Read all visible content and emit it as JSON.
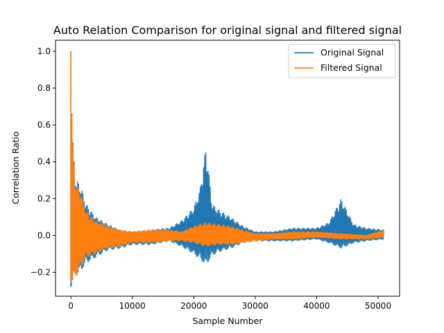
{
  "chart_data": {
    "type": "line",
    "title": "Auto Relation Comparison for original signal and filtered signal",
    "xlabel": "Sample Number",
    "ylabel": "Correlation Ratio",
    "xlim": [
      -2500,
      53500
    ],
    "ylim": [
      -0.33,
      1.06
    ],
    "xticks": [
      0,
      10000,
      20000,
      30000,
      40000,
      50000
    ],
    "xtick_labels": [
      "0",
      "10000",
      "20000",
      "30000",
      "40000",
      "50000"
    ],
    "yticks": [
      -0.2,
      0.0,
      0.2,
      0.4,
      0.6,
      0.8,
      1.0
    ],
    "ytick_labels": [
      "−0.2",
      "0.0",
      "0.2",
      "0.4",
      "0.6",
      "0.8",
      "1.0"
    ],
    "grid": false,
    "legend_position": "top-right",
    "series": [
      {
        "name": "Original Signal",
        "color": "#1f77b4",
        "envelope": [
          {
            "x": 0,
            "upper": 1.0,
            "lower": -0.28
          },
          {
            "x": 300,
            "upper": 0.53,
            "lower": -0.26
          },
          {
            "x": 800,
            "upper": 0.3,
            "lower": -0.22
          },
          {
            "x": 1500,
            "upper": 0.28,
            "lower": -0.2
          },
          {
            "x": 2500,
            "upper": 0.17,
            "lower": -0.15
          },
          {
            "x": 4000,
            "upper": 0.1,
            "lower": -0.12
          },
          {
            "x": 6000,
            "upper": 0.06,
            "lower": -0.08
          },
          {
            "x": 8000,
            "upper": 0.03,
            "lower": -0.07
          },
          {
            "x": 10000,
            "upper": 0.02,
            "lower": -0.05
          },
          {
            "x": 13000,
            "upper": 0.03,
            "lower": -0.05
          },
          {
            "x": 16000,
            "upper": 0.04,
            "lower": -0.03
          },
          {
            "x": 18000,
            "upper": 0.08,
            "lower": -0.06
          },
          {
            "x": 20000,
            "upper": 0.15,
            "lower": -0.1
          },
          {
            "x": 21000,
            "upper": 0.25,
            "lower": -0.13
          },
          {
            "x": 22000,
            "upper": 0.49,
            "lower": -0.16
          },
          {
            "x": 23000,
            "upper": 0.17,
            "lower": -0.11
          },
          {
            "x": 24000,
            "upper": 0.14,
            "lower": -0.09
          },
          {
            "x": 26000,
            "upper": 0.1,
            "lower": -0.07
          },
          {
            "x": 28000,
            "upper": 0.05,
            "lower": -0.04
          },
          {
            "x": 30000,
            "upper": 0.02,
            "lower": -0.03
          },
          {
            "x": 33000,
            "upper": 0.02,
            "lower": -0.03
          },
          {
            "x": 36000,
            "upper": 0.04,
            "lower": -0.03
          },
          {
            "x": 40000,
            "upper": 0.04,
            "lower": -0.02
          },
          {
            "x": 42000,
            "upper": 0.07,
            "lower": -0.04
          },
          {
            "x": 44000,
            "upper": 0.2,
            "lower": -0.07
          },
          {
            "x": 46000,
            "upper": 0.06,
            "lower": -0.04
          },
          {
            "x": 48000,
            "upper": 0.04,
            "lower": -0.03
          },
          {
            "x": 51000,
            "upper": 0.03,
            "lower": -0.02
          }
        ]
      },
      {
        "name": "Filtered Signal",
        "color": "#ff7f0e",
        "envelope": [
          {
            "x": 0,
            "upper": 1.0,
            "lower": -0.26
          },
          {
            "x": 300,
            "upper": 0.52,
            "lower": -0.25
          },
          {
            "x": 800,
            "upper": 0.28,
            "lower": -0.22
          },
          {
            "x": 1500,
            "upper": 0.25,
            "lower": -0.18
          },
          {
            "x": 2500,
            "upper": 0.13,
            "lower": -0.12
          },
          {
            "x": 4000,
            "upper": 0.08,
            "lower": -0.1
          },
          {
            "x": 6000,
            "upper": 0.05,
            "lower": -0.07
          },
          {
            "x": 8000,
            "upper": 0.03,
            "lower": -0.06
          },
          {
            "x": 10000,
            "upper": 0.02,
            "lower": -0.04
          },
          {
            "x": 13000,
            "upper": 0.03,
            "lower": -0.04
          },
          {
            "x": 16000,
            "upper": 0.03,
            "lower": -0.03
          },
          {
            "x": 18000,
            "upper": 0.02,
            "lower": -0.03
          },
          {
            "x": 20000,
            "upper": 0.05,
            "lower": -0.04
          },
          {
            "x": 22000,
            "upper": 0.07,
            "lower": -0.06
          },
          {
            "x": 24000,
            "upper": 0.06,
            "lower": -0.05
          },
          {
            "x": 26000,
            "upper": 0.05,
            "lower": -0.05
          },
          {
            "x": 28000,
            "upper": 0.03,
            "lower": -0.04
          },
          {
            "x": 30000,
            "upper": 0.01,
            "lower": -0.03
          },
          {
            "x": 33000,
            "upper": 0.01,
            "lower": -0.02
          },
          {
            "x": 36000,
            "upper": 0.02,
            "lower": -0.02
          },
          {
            "x": 40000,
            "upper": 0.02,
            "lower": -0.01
          },
          {
            "x": 44000,
            "upper": 0.01,
            "lower": -0.02
          },
          {
            "x": 48000,
            "upper": 0.0,
            "lower": -0.02
          },
          {
            "x": 51000,
            "upper": 0.03,
            "lower": -0.01
          }
        ]
      }
    ]
  }
}
